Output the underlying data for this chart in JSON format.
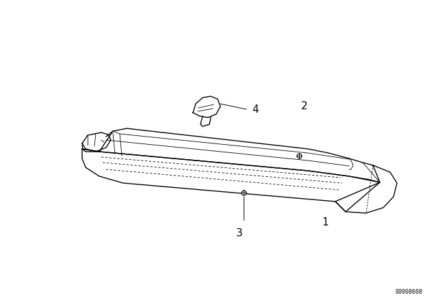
{
  "background_color": "#ffffff",
  "line_color": "#000000",
  "diagram_id": "00008608",
  "fig_width": 6.4,
  "fig_height": 4.48,
  "dpi": 100
}
